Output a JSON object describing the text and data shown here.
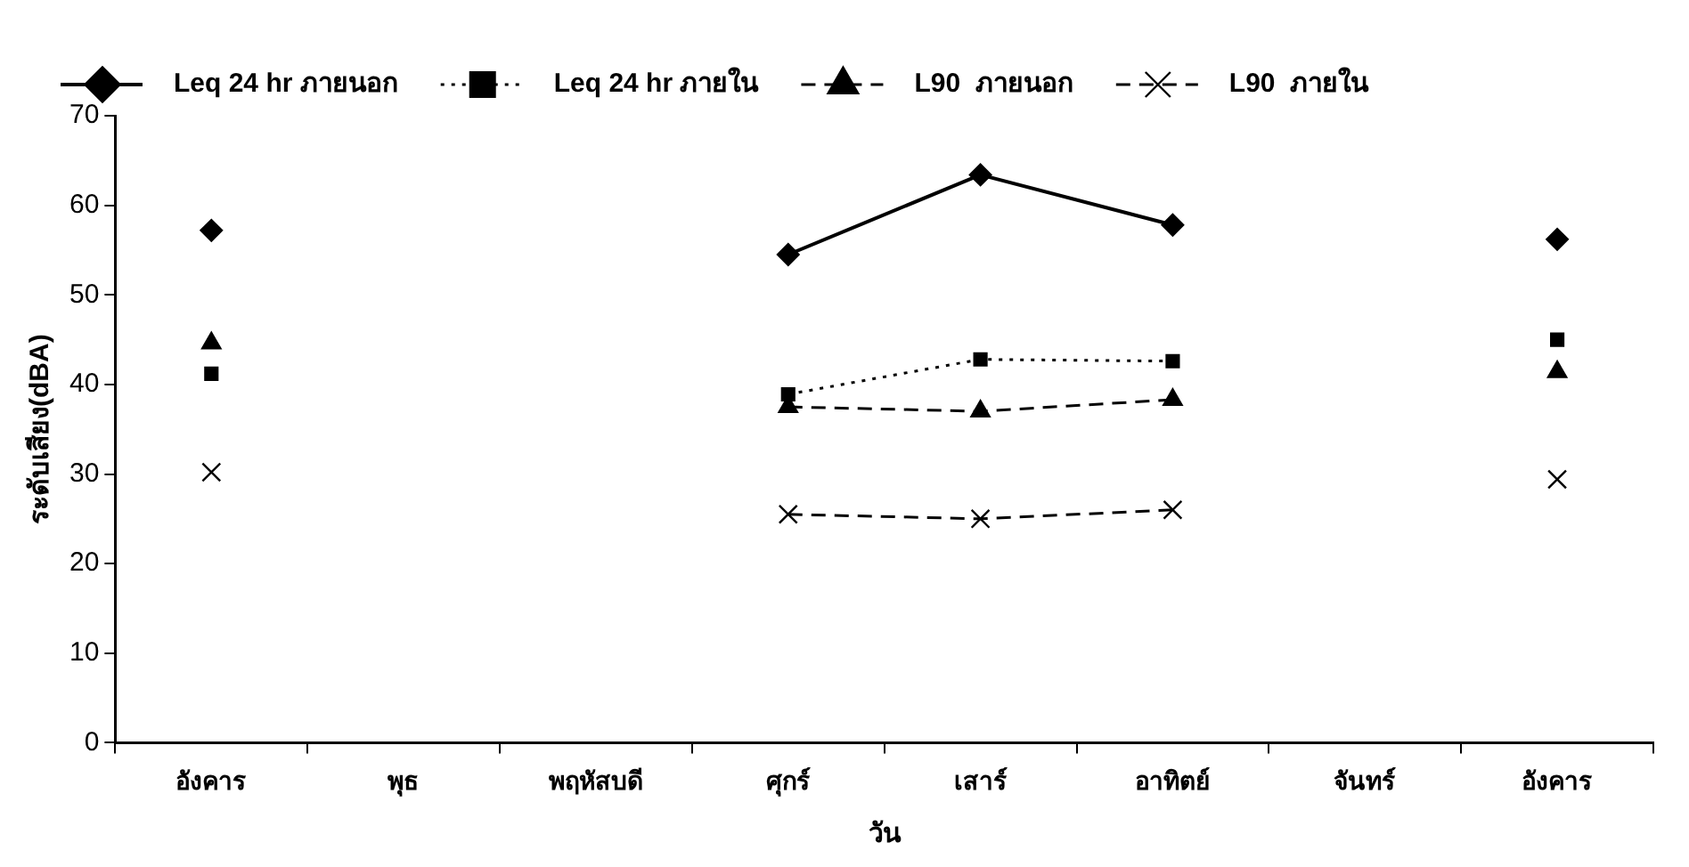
{
  "chart_data": {
    "type": "line",
    "xlabel": "วัน",
    "ylabel": "ระดับเสียง(dBA)",
    "categories": [
      "อังคาร",
      "พุธ",
      "พฤหัสบดี",
      "ศุกร์",
      "เสาร์",
      "อาทิตย์",
      "จันทร์",
      "อังคาร"
    ],
    "series": [
      {
        "name": "Leq 24 hr ภายนอก",
        "color": "#000000",
        "marker": "diamond",
        "line_style": "solid",
        "values": [
          57.2,
          null,
          null,
          54.5,
          63.4,
          57.8,
          null,
          56.2
        ]
      },
      {
        "name": "Leq 24 hr ภายใน",
        "color": "#000000",
        "marker": "square",
        "line_style": "dotted",
        "values": [
          41.2,
          null,
          null,
          38.9,
          42.8,
          42.6,
          null,
          45.0
        ]
      },
      {
        "name": "L90  ภายนอก",
        "color": "#000000",
        "marker": "triangle",
        "line_style": "dashed",
        "values": [
          44.6,
          null,
          null,
          37.5,
          37.0,
          38.3,
          null,
          41.4
        ]
      },
      {
        "name": "L90  ภายใน",
        "color": "#000000",
        "marker": "cross",
        "line_style": "dashed",
        "values": [
          30.2,
          null,
          null,
          25.5,
          25.0,
          26.0,
          null,
          29.4
        ]
      }
    ],
    "ylim": [
      0,
      70
    ],
    "yticks": [
      0,
      10,
      20,
      30,
      40,
      50,
      60,
      70
    ],
    "grid": false,
    "legend": "top"
  }
}
